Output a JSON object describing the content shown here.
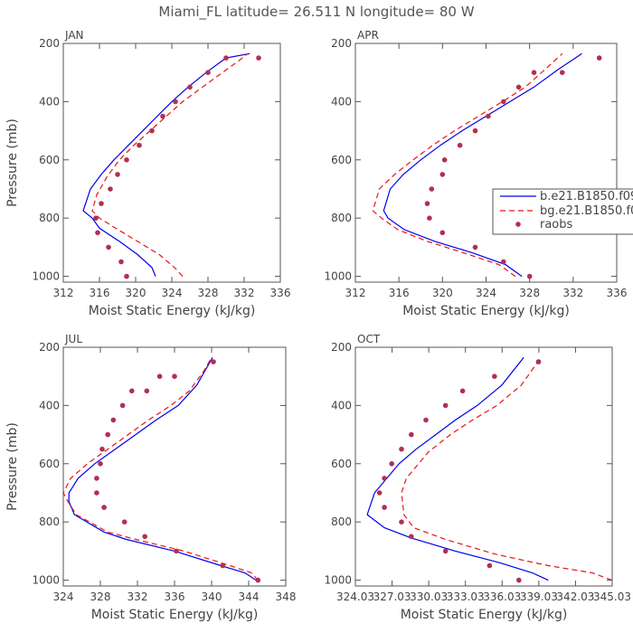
{
  "title": "Miami_FL   latitude= 26.511 N longitude= 80 W",
  "colors": {
    "model_b": "#0000ee",
    "model_bg": "#ee1111",
    "raobs": "#b03050",
    "axis": "#555555"
  },
  "legend": {
    "labels": [
      "b.e21.B1850.f09",
      "bg.e21.B1850.f0",
      "raobs"
    ]
  },
  "chart_data": [
    {
      "type": "line",
      "panel": "JAN",
      "title": "JAN",
      "xlabel": "Moist Static Energy (kJ/kg)",
      "ylabel": "Pressure (mb)",
      "xlim": [
        312,
        336
      ],
      "ylim": [
        1020,
        200
      ],
      "xticks": [
        312,
        316,
        320,
        324,
        328,
        332,
        336
      ],
      "xtick_labels": [
        "312",
        "316",
        "320",
        "324",
        "328",
        "332",
        "336"
      ],
      "yticks": [
        200,
        400,
        600,
        800,
        1000
      ],
      "yticks_labels": [
        "200",
        "400",
        "600",
        "800",
        "1000"
      ],
      "show_ylabel": true,
      "series": [
        {
          "name": "b.e21.B1850.f09",
          "style": "solid",
          "x": [
            322.2,
            321.8,
            320.2,
            318.2,
            316.0,
            315.2,
            314.2,
            315.0,
            316.2,
            317.6,
            319.2,
            320.8,
            322.4,
            324.0,
            325.8,
            327.8,
            330.0,
            332.6
          ],
          "y": [
            1000,
            970,
            925,
            880,
            835,
            800,
            775,
            700,
            650,
            600,
            550,
            500,
            450,
            400,
            350,
            300,
            250,
            235
          ]
        },
        {
          "name": "bg.e21.B1850.f0",
          "style": "dashed",
          "x": [
            325.2,
            324.3,
            322.6,
            320.2,
            317.8,
            316.0,
            315.2,
            315.7,
            316.8,
            318.2,
            319.8,
            321.6,
            323.4,
            325.2,
            327.4,
            329.6,
            331.4,
            332.4
          ],
          "y": [
            1000,
            970,
            925,
            880,
            835,
            800,
            775,
            720,
            660,
            600,
            550,
            500,
            450,
            400,
            350,
            300,
            260,
            235
          ]
        }
      ],
      "points": {
        "name": "raobs",
        "x": [
          319.0,
          318.4,
          317.0,
          315.8,
          315.6,
          316.2,
          317.2,
          318.0,
          319.0,
          320.4,
          321.8,
          323.0,
          324.4,
          326.0,
          328.0,
          330.0,
          333.6
        ],
        "y": [
          1000,
          950,
          900,
          850,
          800,
          750,
          700,
          650,
          600,
          550,
          500,
          450,
          400,
          350,
          300,
          250,
          250
        ]
      }
    },
    {
      "type": "line",
      "panel": "APR",
      "title": "APR",
      "xlabel": "Moist Static Energy (kJ/kg)",
      "ylabel": "",
      "xlim": [
        312,
        336
      ],
      "ylim": [
        1020,
        200
      ],
      "xticks": [
        312,
        316,
        320,
        324,
        328,
        332,
        336
      ],
      "xtick_labels": [
        "312",
        "316",
        "320",
        "324",
        "328",
        "332",
        "336"
      ],
      "yticks": [
        200,
        400,
        600,
        800,
        1000
      ],
      "yticks_labels": [
        "200",
        "400",
        "600",
        "800",
        "1000"
      ],
      "show_ylabel": false,
      "series": [
        {
          "name": "b.e21.B1850.f09",
          "style": "solid",
          "x": [
            327.3,
            325.8,
            322.8,
            319.3,
            316.5,
            315.0,
            314.6,
            315.2,
            316.4,
            318.0,
            319.8,
            321.8,
            324.0,
            326.2,
            328.4,
            330.6,
            332.8
          ],
          "y": [
            1000,
            960,
            920,
            880,
            840,
            800,
            775,
            700,
            650,
            600,
            550,
            500,
            450,
            400,
            350,
            290,
            235
          ]
        },
        {
          "name": "bg.e21.B1850.f0",
          "style": "dashed",
          "x": [
            326.7,
            325.2,
            322.0,
            318.6,
            315.9,
            314.4,
            313.6,
            314.2,
            315.6,
            317.3,
            319.1,
            321.1,
            323.3,
            325.5,
            327.6,
            329.4,
            331.0
          ],
          "y": [
            1000,
            960,
            920,
            880,
            840,
            800,
            775,
            700,
            650,
            600,
            550,
            500,
            450,
            400,
            350,
            290,
            235
          ]
        }
      ],
      "points": {
        "name": "raobs",
        "x": [
          328.0,
          325.6,
          323.0,
          320.0,
          318.8,
          318.6,
          319.0,
          320.0,
          320.2,
          321.6,
          323.0,
          324.2,
          325.6,
          327.0,
          328.4,
          331.0,
          334.4
        ],
        "y": [
          1000,
          950,
          900,
          850,
          800,
          750,
          700,
          650,
          600,
          550,
          500,
          450,
          400,
          350,
          300,
          300,
          250
        ]
      }
    },
    {
      "type": "line",
      "panel": "JUL",
      "title": "JUL",
      "xlabel": "Moist Static Energy (kJ/kg)",
      "ylabel": "Pressure (mb)",
      "xlim": [
        324,
        348
      ],
      "ylim": [
        1020,
        200
      ],
      "xticks": [
        324,
        328,
        332,
        336,
        340,
        344,
        348
      ],
      "xtick_labels": [
        "324",
        "328",
        "332",
        "336",
        "340",
        "344",
        "348"
      ],
      "yticks": [
        200,
        400,
        600,
        800,
        1000
      ],
      "yticks_labels": [
        "200",
        "400",
        "600",
        "800",
        "1000"
      ],
      "show_ylabel": true,
      "series": [
        {
          "name": "b.e21.B1850.f09",
          "style": "solid",
          "x": [
            344.8,
            343.6,
            341.0,
            336.0,
            330.8,
            328.4,
            325.2,
            324.6,
            324.6,
            325.6,
            327.4,
            329.6,
            331.8,
            334.0,
            336.4,
            338.4,
            340.1
          ],
          "y": [
            1000,
            975,
            950,
            900,
            860,
            835,
            775,
            730,
            700,
            650,
            600,
            550,
            500,
            450,
            400,
            330,
            235
          ]
        },
        {
          "name": "bg.e21.B1850.f0",
          "style": "dashed",
          "x": [
            345.0,
            344.3,
            342.0,
            337.0,
            331.8,
            328.8,
            325.4,
            324.5,
            324.0,
            324.8,
            326.6,
            328.8,
            331.0,
            333.2,
            335.6,
            337.6,
            339.2,
            340.0
          ],
          "y": [
            1000,
            975,
            950,
            900,
            860,
            835,
            775,
            730,
            700,
            650,
            600,
            550,
            500,
            450,
            400,
            350,
            280,
            235
          ]
        }
      ],
      "points": {
        "name": "raobs",
        "x": [
          345.0,
          341.2,
          336.2,
          332.8,
          330.6,
          328.4,
          327.6,
          327.6,
          328.0,
          328.2,
          328.8,
          329.4,
          330.4,
          331.4,
          333.0,
          334.4,
          336.0,
          340.2
        ],
        "y": [
          1000,
          950,
          900,
          850,
          800,
          750,
          700,
          650,
          600,
          550,
          500,
          450,
          400,
          350,
          350,
          300,
          300,
          250
        ]
      }
    },
    {
      "type": "line",
      "panel": "OCT",
      "title": "OCT",
      "xlabel": "Moist Static Energy (kJ/kg)",
      "ylabel": "",
      "xlim": [
        324.03,
        345.03
      ],
      "ylim": [
        1020,
        200
      ],
      "xticks": [
        324.03,
        327.03,
        330.03,
        333.03,
        336.03,
        339.03,
        342.03,
        345.03
      ],
      "xtick_labels": [
        "324.03",
        "327.03",
        "330.03",
        "333.03",
        "336.03",
        "339.03",
        "342.03",
        "345.03"
      ],
      "yticks": [
        200,
        400,
        600,
        800,
        1000
      ],
      "yticks_labels": [
        "200",
        "400",
        "600",
        "800",
        "1000"
      ],
      "show_ylabel": false,
      "series": [
        {
          "name": "b.e21.B1850.f09",
          "style": "solid",
          "x": [
            339.8,
            338.5,
            335.8,
            332.2,
            328.6,
            326.4,
            325.0,
            325.6,
            326.6,
            327.6,
            329.0,
            330.6,
            332.2,
            334.0,
            336.0,
            337.8
          ],
          "y": [
            1000,
            975,
            940,
            900,
            855,
            820,
            775,
            700,
            650,
            600,
            550,
            500,
            450,
            400,
            330,
            235
          ]
        },
        {
          "name": "bg.e21.B1850.f0",
          "style": "dashed",
          "x": [
            345.0,
            343.4,
            339.8,
            335.4,
            331.4,
            328.8,
            328.0,
            327.8,
            328.2,
            328.8,
            330.0,
            331.8,
            333.6,
            335.6,
            337.6,
            339.2
          ],
          "y": [
            1000,
            975,
            950,
            910,
            860,
            820,
            775,
            700,
            650,
            620,
            560,
            500,
            450,
            400,
            330,
            235
          ]
        }
      ],
      "points": {
        "name": "raobs",
        "x": [
          337.4,
          335.0,
          331.4,
          328.6,
          327.8,
          326.4,
          326.0,
          326.4,
          327.0,
          327.8,
          328.6,
          329.8,
          331.4,
          332.8,
          335.4,
          339.0
        ],
        "y": [
          1000,
          950,
          900,
          850,
          800,
          750,
          700,
          650,
          600,
          550,
          500,
          450,
          400,
          350,
          300,
          250
        ]
      }
    }
  ]
}
